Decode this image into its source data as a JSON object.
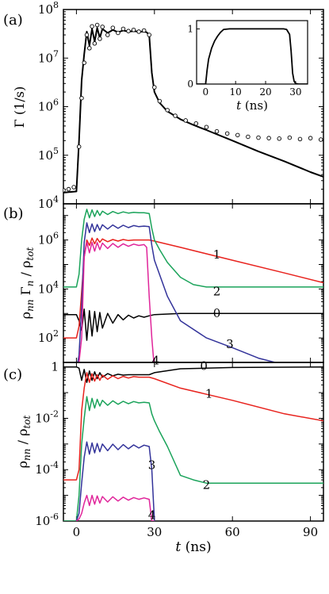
{
  "chart_data": [
    {
      "panel_label": "(a)",
      "type": "line",
      "ylabel": "Γ (1/s)",
      "yscale": "log",
      "ylim": [
        10000,
        100000000
      ],
      "xlim": [
        -5,
        95
      ],
      "xticks": [],
      "yticks": [
        {
          "value": 10000,
          "base": "10",
          "exp": "4"
        },
        {
          "value": 100000,
          "base": "10",
          "exp": "5"
        },
        {
          "value": 1000000,
          "base": "10",
          "exp": "6"
        },
        {
          "value": 10000000,
          "base": "10",
          "exp": "7"
        },
        {
          "value": 100000000,
          "base": "10",
          "exp": "8"
        }
      ],
      "series": [
        {
          "style": "solid-black",
          "x": [
            -5,
            0,
            1,
            2,
            3,
            4,
            5,
            6,
            7,
            8,
            9,
            10,
            12,
            14,
            16,
            18,
            20,
            22,
            24,
            26,
            27,
            28,
            29,
            30,
            32,
            35,
            40,
            45,
            50,
            60,
            70,
            80,
            90,
            95
          ],
          "y": [
            17000,
            18000,
            200000,
            3500000,
            12000000,
            35000000,
            18000000,
            40000000,
            22000000,
            42000000,
            26000000,
            40000000,
            33000000,
            38000000,
            34000000,
            37000000,
            35000000,
            36000000,
            35000000,
            35000000,
            34000000,
            30000000,
            5000000,
            2000000,
            1200000,
            800000,
            550000,
            420000,
            330000,
            200000,
            120000,
            75000,
            45000,
            36000
          ]
        },
        {
          "style": "open-circles",
          "x": [
            -5,
            -3,
            -1,
            1,
            2,
            3,
            4,
            5,
            6,
            7,
            8,
            9,
            10,
            12,
            14,
            16,
            18,
            20,
            22,
            24,
            26,
            28,
            30,
            32,
            35,
            38,
            42,
            46,
            50,
            54,
            58,
            62,
            66,
            70,
            74,
            78,
            82,
            86,
            90,
            94
          ],
          "y": [
            19000,
            20000,
            22000,
            150000,
            1500000,
            8000000,
            30000000,
            16000000,
            45000000,
            20000000,
            48000000,
            25000000,
            44000000,
            30000000,
            42000000,
            33000000,
            40000000,
            36000000,
            38000000,
            35000000,
            37000000,
            30000000,
            2500000,
            1300000,
            850000,
            650000,
            520000,
            450000,
            380000,
            310000,
            280000,
            260000,
            240000,
            230000,
            225000,
            220000,
            230000,
            215000,
            225000,
            210000
          ]
        }
      ],
      "inset": {
        "type": "line",
        "xlabel_t": "t",
        "xlabel_unit": " (ns)",
        "xlim": [
          -3,
          34
        ],
        "ylim": [
          0,
          1.15
        ],
        "xticks": [
          "0",
          "10",
          "20",
          "30"
        ],
        "xtick_values": [
          0,
          10,
          20,
          30
        ],
        "yticks": [
          "0",
          "1"
        ],
        "ytick_values": [
          0,
          1
        ],
        "x": [
          -3,
          0,
          0.5,
          1,
          2,
          3,
          4,
          5,
          6,
          8,
          10,
          15,
          20,
          25,
          26,
          27,
          28,
          28.5,
          29,
          29.5,
          30,
          31,
          34
        ],
        "y": [
          0,
          0,
          0.25,
          0.45,
          0.65,
          0.78,
          0.87,
          0.94,
          0.99,
          1,
          1,
          1,
          1,
          1,
          1,
          0.99,
          0.9,
          0.6,
          0.2,
          0.05,
          0.01,
          0,
          0
        ]
      }
    },
    {
      "panel_label": "(b)",
      "type": "line",
      "ylabel_main": "ρ",
      "ylabel_sub1": "nn",
      "ylabel_mid": " Γ",
      "ylabel_sub2": "n",
      "ylabel_slash": " / ρ",
      "ylabel_sub3": "tot",
      "yscale": "log",
      "ylim": [
        10,
        30000000
      ],
      "xlim": [
        -5,
        95
      ],
      "xticks": [],
      "yticks": [
        {
          "value": 100,
          "base": "10",
          "exp": "2"
        },
        {
          "value": 10000,
          "base": "10",
          "exp": "4"
        },
        {
          "value": 1000000,
          "base": "10",
          "exp": "6"
        }
      ],
      "series": [
        {
          "name": "0",
          "color": "#000000",
          "x": [
            -5,
            0,
            1,
            2,
            3,
            4,
            5,
            6,
            7,
            8,
            9,
            10,
            12,
            14,
            16,
            18,
            20,
            22,
            24,
            26,
            28,
            30,
            40,
            60,
            95
          ],
          "y": [
            900,
            900,
            500,
            200,
            1500,
            80,
            1300,
            120,
            1200,
            180,
            1100,
            250,
            1000,
            400,
            900,
            550,
            850,
            650,
            800,
            700,
            800,
            900,
            1000,
            1000,
            1000
          ]
        },
        {
          "name": "1",
          "color": "#e8231e",
          "x": [
            -5,
            0,
            1,
            2,
            3,
            4,
            5,
            6,
            7,
            8,
            9,
            10,
            12,
            14,
            16,
            18,
            20,
            22,
            24,
            26,
            28,
            30,
            40,
            60,
            80,
            95
          ],
          "y": [
            100,
            100,
            300,
            8000,
            200000,
            1000000,
            600000,
            1200000,
            700000,
            1150000,
            800000,
            1100000,
            850000,
            1050000,
            900000,
            1050000,
            950000,
            1000000,
            1000000,
            1000000,
            1000000,
            900000,
            500000,
            150000,
            45000,
            18000
          ]
        },
        {
          "name": "2",
          "color": "#1aa35a",
          "x": [
            -5,
            0,
            1,
            2,
            3,
            4,
            5,
            6,
            7,
            8,
            9,
            10,
            12,
            14,
            16,
            18,
            20,
            22,
            24,
            26,
            28,
            29,
            30,
            32,
            35,
            40,
            45,
            50,
            60,
            95
          ],
          "y": [
            12000,
            12000,
            40000,
            1000000,
            7000000,
            18000000,
            8000000,
            17000000,
            9000000,
            16000000,
            10000000,
            15000000,
            11000000,
            14500000,
            12000000,
            14000000,
            12500000,
            13500000,
            13000000,
            13000000,
            12000000,
            3000000,
            1000000,
            400000,
            120000,
            30000,
            15000,
            12000,
            12000,
            12000
          ]
        },
        {
          "name": "3",
          "color": "#33339a",
          "x": [
            -5,
            0,
            1,
            2,
            3,
            4,
            5,
            6,
            7,
            8,
            9,
            10,
            12,
            14,
            16,
            18,
            20,
            22,
            24,
            26,
            28,
            29,
            30,
            35,
            40,
            50,
            60,
            70,
            80,
            90,
            95
          ],
          "y": [
            5,
            5,
            20,
            2000,
            800000,
            5000000,
            2000000,
            4500000,
            2200000,
            4300000,
            2500000,
            4200000,
            2800000,
            4100000,
            3000000,
            4000000,
            3200000,
            3900000,
            3500000,
            3700000,
            3500000,
            600000,
            150000,
            5000,
            500,
            100,
            40,
            15,
            8,
            6,
            5
          ]
        },
        {
          "name": "4",
          "color": "#e0259a",
          "x": [
            -5,
            0,
            1,
            2,
            3,
            4,
            5,
            6,
            7,
            8,
            9,
            10,
            12,
            14,
            16,
            18,
            20,
            22,
            24,
            26,
            27,
            28,
            29,
            30
          ],
          "y": [
            5,
            5,
            10,
            100,
            200000,
            800000,
            300000,
            800000,
            350000,
            780000,
            400000,
            750000,
            450000,
            720000,
            500000,
            700000,
            550000,
            680000,
            600000,
            650000,
            500000,
            5000,
            100,
            5
          ]
        }
      ],
      "curve_labels": [
        {
          "text": "0",
          "x": 54,
          "y": 1000
        },
        {
          "text": "1",
          "x": 54,
          "y": 250000
        },
        {
          "text": "2",
          "x": 54,
          "y": 8000
        },
        {
          "text": "3",
          "x": 59,
          "y": 55
        },
        {
          "text": "4",
          "x": 30.5,
          "y": 12
        }
      ]
    },
    {
      "panel_label": "(c)",
      "type": "line",
      "ylabel_main": "ρ",
      "ylabel_sub1": "nn",
      "ylabel_slash": " / ρ",
      "ylabel_sub3": "tot",
      "xlabel_t": "t",
      "xlabel_unit": " (ns)",
      "yscale": "log",
      "ylim": [
        1e-06,
        1.5
      ],
      "xlim": [
        -5,
        95
      ],
      "xticks": [
        "0",
        "30",
        "60",
        "90"
      ],
      "xtick_values": [
        0,
        30,
        60,
        90
      ],
      "yticks": [
        {
          "value": 1,
          "text": "1"
        },
        {
          "value": 0.01,
          "text": "10-2",
          "base": "10",
          "exp": "-2"
        },
        {
          "value": 0.0001,
          "text": "10-4",
          "base": "10",
          "exp": "-4"
        },
        {
          "value": 1e-06,
          "text": "10-6",
          "base": "10",
          "exp": "-6"
        }
      ],
      "series": [
        {
          "name": "0",
          "color": "#000000",
          "x": [
            -5,
            0,
            1,
            2,
            3,
            4,
            5,
            6,
            7,
            8,
            9,
            10,
            12,
            14,
            16,
            18,
            20,
            22,
            24,
            26,
            28,
            30,
            40,
            60,
            95
          ],
          "y": [
            1,
            1,
            0.9,
            0.3,
            0.8,
            0.25,
            0.7,
            0.3,
            0.65,
            0.35,
            0.6,
            0.4,
            0.55,
            0.45,
            0.52,
            0.48,
            0.5,
            0.5,
            0.5,
            0.5,
            0.5,
            0.6,
            0.85,
            0.95,
            1
          ]
        },
        {
          "name": "1",
          "color": "#e8231e",
          "x": [
            -5,
            0,
            1,
            2,
            3,
            4,
            5,
            6,
            7,
            8,
            9,
            10,
            12,
            14,
            16,
            18,
            20,
            22,
            24,
            26,
            28,
            30,
            40,
            60,
            80,
            95
          ],
          "y": [
            4e-05,
            4e-05,
            0.0001,
            0.02,
            0.15,
            0.6,
            0.25,
            0.55,
            0.28,
            0.5,
            0.3,
            0.48,
            0.33,
            0.45,
            0.35,
            0.43,
            0.37,
            0.42,
            0.4,
            0.4,
            0.4,
            0.35,
            0.15,
            0.05,
            0.015,
            0.008
          ]
        },
        {
          "name": "2",
          "color": "#1aa35a",
          "x": [
            -5,
            0,
            1,
            2,
            3,
            4,
            5,
            6,
            7,
            8,
            9,
            10,
            12,
            14,
            16,
            18,
            20,
            22,
            24,
            26,
            28,
            29,
            30,
            32,
            35,
            40,
            45,
            50,
            60,
            95
          ],
          "y": [
            1e-06,
            1e-06,
            1e-05,
            0.001,
            0.01,
            0.07,
            0.02,
            0.06,
            0.025,
            0.055,
            0.03,
            0.05,
            0.032,
            0.048,
            0.035,
            0.046,
            0.037,
            0.045,
            0.04,
            0.042,
            0.04,
            0.015,
            0.008,
            0.003,
            0.0008,
            6e-05,
            4e-05,
            3e-05,
            3e-05,
            3e-05
          ]
        },
        {
          "name": "3",
          "color": "#33339a",
          "x": [
            0,
            1,
            2,
            3,
            4,
            5,
            6,
            7,
            8,
            9,
            10,
            12,
            14,
            16,
            18,
            20,
            22,
            24,
            26,
            28,
            29,
            30
          ],
          "y": [
            1e-06,
            2e-06,
            3e-05,
            0.0003,
            0.0012,
            0.0004,
            0.0011,
            0.00045,
            0.00105,
            0.0005,
            0.001,
            0.00055,
            0.00098,
            0.0006,
            0.00095,
            0.00065,
            0.00092,
            0.0007,
            0.0009,
            0.0008,
            0.0001,
            1e-06
          ]
        },
        {
          "name": "4",
          "color": "#e0259a",
          "x": [
            0,
            1,
            2,
            3,
            4,
            5,
            6,
            7,
            8,
            9,
            10,
            12,
            14,
            16,
            18,
            20,
            22,
            24,
            26,
            28,
            29,
            30
          ],
          "y": [
            1e-06,
            1.2e-06,
            2e-06,
            5e-06,
            1e-05,
            4e-06,
            1e-05,
            4.5e-06,
            9.5e-06,
            5e-06,
            9e-06,
            5.5e-06,
            8.8e-06,
            6e-06,
            8.5e-06,
            6.5e-06,
            8.2e-06,
            7e-06,
            8e-06,
            7e-06,
            1e-06,
            1e-06
          ]
        }
      ],
      "curve_labels": [
        {
          "text": "0",
          "x": 49,
          "y": 1.1
        },
        {
          "text": "1",
          "x": 51,
          "y": 0.09
        },
        {
          "text": "2",
          "x": 50,
          "y": 2.5e-05
        },
        {
          "text": "3",
          "x": 29,
          "y": 0.00015
        },
        {
          "text": "4",
          "x": 29,
          "y": 1.7e-06
        }
      ]
    }
  ]
}
